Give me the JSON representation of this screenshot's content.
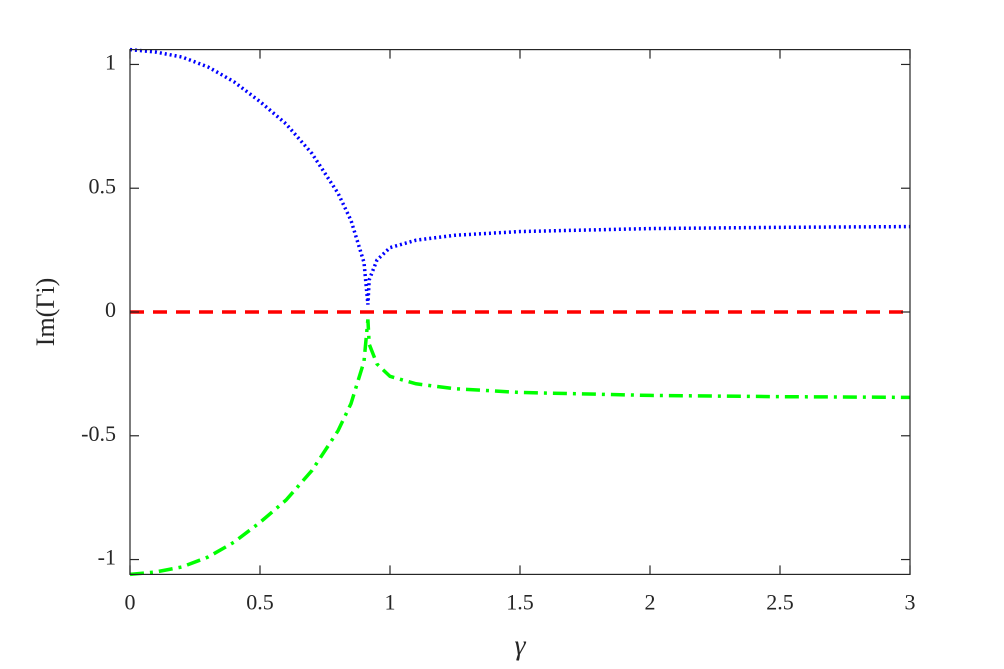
{
  "chart_data": {
    "type": "line",
    "x_label": "γ",
    "y_label": "Im(Γi)",
    "x": [
      0,
      0.1,
      0.2,
      0.3,
      0.4,
      0.5,
      0.6,
      0.7,
      0.8,
      0.85,
      0.9,
      0.915,
      0.92,
      0.95,
      1,
      1.1,
      1.25,
      1.5,
      2,
      2.5,
      3
    ],
    "series": [
      {
        "color": "#0000ff",
        "style": "dotted",
        "values": [
          1.06,
          1.05,
          1.03,
          0.99,
          0.93,
          0.85,
          0.76,
          0.64,
          0.48,
          0.37,
          0.2,
          0.03,
          0.13,
          0.21,
          0.26,
          0.29,
          0.31,
          0.325,
          0.337,
          0.342,
          0.345
        ]
      },
      {
        "color": "#ff0000",
        "style": "dashed",
        "values": [
          0,
          0,
          0,
          0,
          0,
          0,
          0,
          0,
          0,
          0,
          0,
          0,
          0,
          0,
          0,
          0,
          0,
          0,
          0,
          0,
          0
        ]
      },
      {
        "color": "#00ff00",
        "style": "dashdot",
        "values": [
          -1.06,
          -1.05,
          -1.03,
          -0.99,
          -0.93,
          -0.85,
          -0.76,
          -0.64,
          -0.48,
          -0.37,
          -0.2,
          -0.03,
          -0.13,
          -0.21,
          -0.26,
          -0.29,
          -0.31,
          -0.325,
          -0.337,
          -0.342,
          -0.345
        ]
      }
    ],
    "xlim": [
      0,
      3
    ],
    "xticks": [
      0,
      0.5,
      1,
      1.5,
      2,
      2.5,
      3
    ],
    "ylim": [
      -1.06,
      1.06
    ],
    "yticks": [
      -1,
      -0.5,
      0,
      0.5,
      1
    ]
  }
}
